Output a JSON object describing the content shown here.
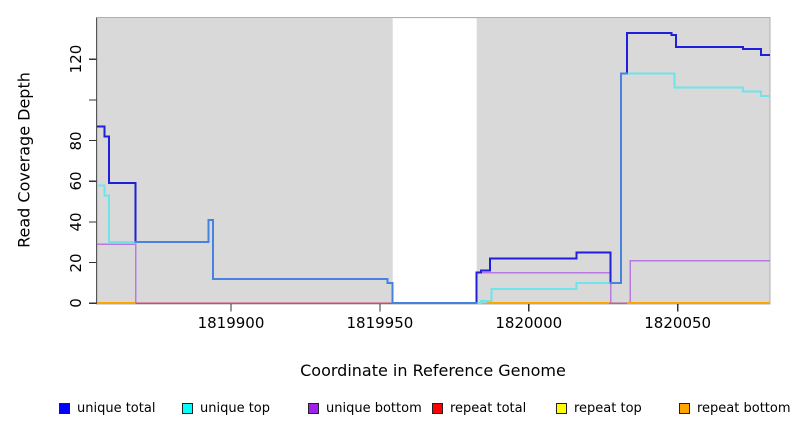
{
  "chart_data": {
    "type": "line",
    "subtype": "step-coverage",
    "title": "",
    "xlabel": "Coordinate in Reference Genome",
    "ylabel": "Read Coverage Depth",
    "xlim": [
      1819855,
      1820081
    ],
    "ylim": [
      0,
      140.5
    ],
    "panel_bg": "#d9d9d9",
    "grid": "off",
    "legend_position": "bottom",
    "x_ticks": [
      {
        "value": 1819900,
        "label": "1819900"
      },
      {
        "value": 1819950,
        "label": "1819950"
      },
      {
        "value": 1820000,
        "label": "1820000"
      },
      {
        "value": 1820050,
        "label": "1820050"
      }
    ],
    "y_ticks": [
      {
        "value": 0,
        "label": "0"
      },
      {
        "value": 20,
        "label": "20"
      },
      {
        "value": 40,
        "label": "40"
      },
      {
        "value": 60,
        "label": "60"
      },
      {
        "value": 80,
        "label": "80"
      },
      {
        "value": 100,
        "label": ""
      },
      {
        "value": 120,
        "label": "120"
      }
    ],
    "gap_region": {
      "x_start": 1819954.3,
      "x_end": 1819982.5
    },
    "series": [
      {
        "name": "unique total",
        "legend_color": "#0000ff",
        "line_color": "#2020d8",
        "points": [
          [
            1819855,
            87
          ],
          [
            1819857.5,
            82
          ],
          [
            1819859,
            59
          ],
          [
            1819868,
            30
          ],
          [
            1819892.5,
            41
          ],
          [
            1819894,
            12
          ],
          [
            1819952.5,
            10
          ],
          [
            1819954.3,
            0
          ],
          [
            1819982.5,
            15
          ],
          [
            1819984,
            16
          ],
          [
            1819987,
            22
          ],
          [
            1820016,
            25
          ],
          [
            1820027.5,
            10
          ],
          [
            1820031,
            113
          ],
          [
            1820033,
            133
          ],
          [
            1820048,
            132
          ],
          [
            1820049.5,
            126
          ],
          [
            1820072,
            125
          ],
          [
            1820078,
            122
          ],
          [
            1820081,
            122
          ]
        ]
      },
      {
        "name": "unique top",
        "legend_color": "#00ffff",
        "line_color": "#6fe4ea",
        "points": [
          [
            1819855,
            58
          ],
          [
            1819857.5,
            53
          ],
          [
            1819859,
            30
          ],
          [
            1819892.5,
            41
          ],
          [
            1819894,
            12
          ],
          [
            1819952.5,
            10
          ],
          [
            1819954.3,
            0
          ],
          [
            1819984,
            1
          ],
          [
            1819987.5,
            7
          ],
          [
            1820016,
            10
          ],
          [
            1820031,
            113
          ],
          [
            1820049,
            106
          ],
          [
            1820072,
            104
          ],
          [
            1820078,
            102
          ],
          [
            1820081,
            102
          ]
        ]
      },
      {
        "name": "unique bottom",
        "legend_color": "#a020f0",
        "line_color": "#b87ae0",
        "points": [
          [
            1819855,
            29
          ],
          [
            1819868,
            0
          ],
          [
            1819982.5,
            15
          ],
          [
            1820027.5,
            0
          ],
          [
            1820034,
            21
          ],
          [
            1820081,
            21
          ]
        ]
      },
      {
        "name": "repeat total",
        "legend_color": "#ff0000",
        "line_color": "#d04a70",
        "points": [
          [
            1819855,
            0
          ],
          [
            1820081,
            0
          ]
        ]
      },
      {
        "name": "repeat top",
        "legend_color": "#ffff00",
        "line_color": "#ffff00",
        "points": [
          [
            1819855,
            0
          ],
          [
            1820081,
            0
          ]
        ]
      },
      {
        "name": "repeat bottom",
        "legend_color": "#ffa500",
        "line_color": "#ffa500",
        "points": [
          [
            1819855,
            0
          ],
          [
            1820081,
            0
          ]
        ]
      }
    ],
    "baseline_segments": [
      {
        "x_start": 1819855,
        "x_end": 1819868,
        "color": "#ffa500"
      },
      {
        "x_start": 1819982.5,
        "x_end": 1819986,
        "color": "#7cc9b0"
      },
      {
        "x_start": 1819986,
        "x_end": 1820027,
        "color": "#ffa500"
      },
      {
        "x_start": 1820027,
        "x_end": 1820033,
        "color": "#c06098"
      },
      {
        "x_start": 1820033,
        "x_end": 1820081,
        "color": "#ffa500"
      }
    ]
  }
}
